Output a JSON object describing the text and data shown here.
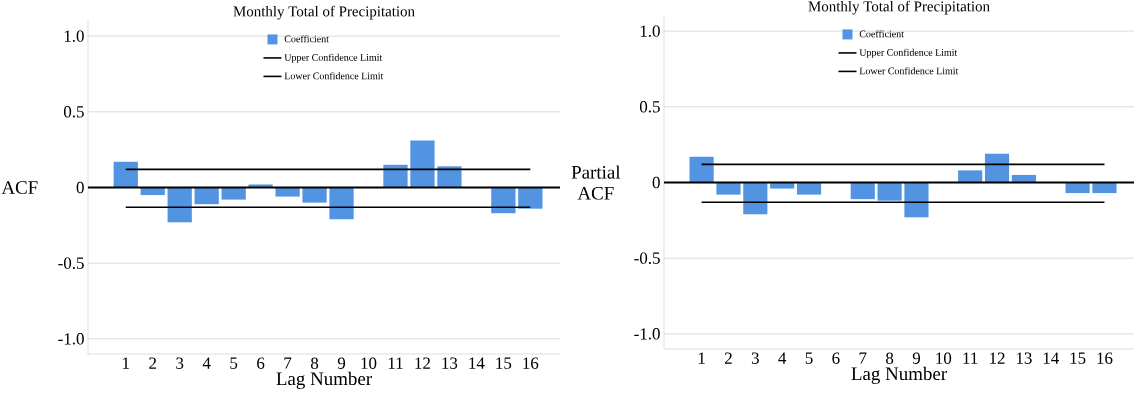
{
  "chart_data": [
    {
      "type": "bar",
      "title": "Monthly Total of Precipitation",
      "xlabel": "Lag Number",
      "ylabel": "ACF",
      "categories": [
        "1",
        "2",
        "3",
        "4",
        "5",
        "6",
        "7",
        "8",
        "9",
        "10",
        "11",
        "12",
        "13",
        "14",
        "15",
        "16"
      ],
      "series": [
        {
          "name": "Coefficient",
          "color": "#5294e2",
          "values": [
            0.17,
            -0.05,
            -0.23,
            -0.11,
            -0.08,
            0.02,
            -0.06,
            -0.1,
            -0.21,
            0,
            0.15,
            0.31,
            0.14,
            0,
            -0.17,
            -0.14
          ]
        },
        {
          "name": "Upper Confidence Limit",
          "type": "line",
          "color": "#000000",
          "values": [
            0.12,
            0.12,
            0.12,
            0.12,
            0.12,
            0.12,
            0.12,
            0.12,
            0.12,
            0.12,
            0.12,
            0.12,
            0.12,
            0.12,
            0.12,
            0.12
          ]
        },
        {
          "name": "Lower Confidence Limit",
          "type": "line",
          "color": "#000000",
          "values": [
            -0.13,
            -0.13,
            -0.13,
            -0.13,
            -0.13,
            -0.13,
            -0.13,
            -0.13,
            -0.13,
            -0.13,
            -0.13,
            -0.13,
            -0.13,
            -0.13,
            -0.13,
            -0.13
          ]
        }
      ],
      "ylim": [
        -1.1,
        1.1
      ],
      "yticks": [
        {
          "value": -1,
          "label": "-1.0"
        },
        {
          "value": -0.5,
          "label": "-0.5"
        },
        0,
        {
          "value": 0.5,
          "label": "0.5"
        },
        {
          "value": 1,
          "label": "1.0"
        }
      ],
      "ref_lines": [
        {
          "axis": "y",
          "value": 0,
          "color": "#000000"
        }
      ],
      "grid": "y",
      "legend": "top",
      "marker": "none",
      "line_style": "solid"
    },
    {
      "type": "bar",
      "title": "Monthly Total of Precipitation",
      "xlabel": "Lag Number",
      "ylabel": "Partial ACF",
      "categories": [
        "1",
        "2",
        "3",
        "4",
        "5",
        "6",
        "7",
        "8",
        "9",
        "10",
        "11",
        "12",
        "13",
        "14",
        "15",
        "16"
      ],
      "series": [
        {
          "name": "Coefficient",
          "color": "#5294e2",
          "values": [
            0.17,
            -0.08,
            -0.21,
            -0.04,
            -0.08,
            0,
            -0.11,
            -0.12,
            -0.23,
            0,
            0.08,
            0.19,
            0.05,
            null,
            -0.07,
            -0.07
          ]
        },
        {
          "name": "Upper Confidence Limit",
          "type": "line",
          "color": "#000000",
          "values": [
            0.12,
            0.12,
            0.12,
            0.12,
            0.12,
            0.12,
            0.12,
            0.12,
            0.12,
            0.12,
            0.12,
            0.12,
            0.12,
            0.12,
            0.12,
            0.12
          ]
        },
        {
          "name": "Lower Confidence Limit",
          "type": "line",
          "color": "#000000",
          "values": [
            -0.13,
            -0.13,
            -0.13,
            -0.13,
            -0.13,
            -0.13,
            -0.13,
            -0.13,
            -0.13,
            -0.13,
            -0.13,
            -0.13,
            -0.13,
            -0.13,
            -0.13,
            -0.13
          ]
        }
      ],
      "ylim": [
        -1.1,
        1.1
      ],
      "yticks": [
        {
          "value": -1,
          "label": "-1.0"
        },
        {
          "value": -0.5,
          "label": "-0.5"
        },
        0,
        {
          "value": 0.5,
          "label": "0.5"
        },
        {
          "value": 1,
          "label": "1.0"
        }
      ],
      "ref_lines": [
        {
          "axis": "y",
          "value": 0,
          "color": "#000000"
        }
      ],
      "grid": "y",
      "legend": "top",
      "marker": "none",
      "line_style": "solid"
    }
  ]
}
